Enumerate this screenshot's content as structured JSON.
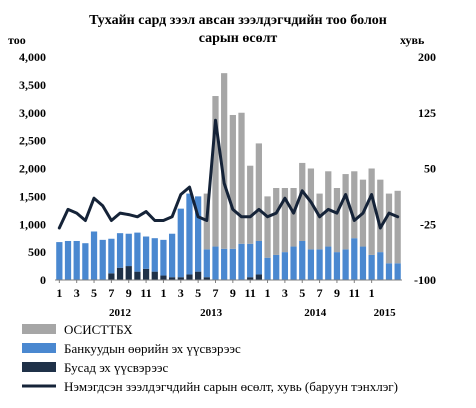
{
  "chart_data": {
    "type": "bar",
    "title_lines": [
      "Тухайн сард зээл авсан зээлдэгчдийн тоо болон",
      "сарын өсөлт"
    ],
    "ylabel_left": "тоо",
    "ylabel_right": "хувь",
    "left_ticks": [
      "0",
      "500",
      "1,000",
      "1,500",
      "2,000",
      "2,500",
      "3,000",
      "3,500",
      "4,000"
    ],
    "right_ticks": [
      "-100",
      "-25",
      "50",
      "125",
      "200"
    ],
    "ylim_left": [
      0,
      4000
    ],
    "ylim_right": [
      -100,
      200
    ],
    "x_tick_labels": [
      "1",
      "3",
      "5",
      "7",
      "9",
      "11",
      "1",
      "3",
      "5",
      "7",
      "9",
      "11",
      "1",
      "3",
      "5",
      "7",
      "9",
      "11",
      "1"
    ],
    "year_labels": [
      "2012",
      "2013",
      "2014",
      "2015"
    ],
    "months": [
      "2012-01",
      "2012-02",
      "2012-03",
      "2012-04",
      "2012-05",
      "2012-06",
      "2012-07",
      "2012-08",
      "2012-09",
      "2012-10",
      "2012-11",
      "2012-12",
      "2013-01",
      "2013-02",
      "2013-03",
      "2013-04",
      "2013-05",
      "2013-06",
      "2013-07",
      "2013-08",
      "2013-09",
      "2013-10",
      "2013-11",
      "2013-12",
      "2014-01",
      "2014-02",
      "2014-03",
      "2014-04",
      "2014-05",
      "2014-06",
      "2014-07",
      "2014-08",
      "2014-09",
      "2014-10",
      "2014-11",
      "2014-12",
      "2015-01",
      "2015-02",
      "2015-03",
      "2015-04"
    ],
    "grid": false,
    "legend_position": "bottom",
    "series": [
      {
        "name": "Бусад эх үүсвэрээс",
        "type": "bar",
        "axis": "left",
        "color": "#1f3148",
        "values": [
          0,
          0,
          0,
          0,
          0,
          0,
          120,
          220,
          250,
          150,
          200,
          150,
          80,
          50,
          50,
          100,
          150,
          50,
          0,
          0,
          0,
          0,
          50,
          100,
          0,
          0,
          0,
          0,
          0,
          0,
          0,
          0,
          0,
          0,
          0,
          0,
          0,
          0,
          0,
          0
        ]
      },
      {
        "name": "Банкуудын өөрийн эх үүсвэрээс",
        "type": "bar",
        "axis": "left",
        "color": "#4a88d0",
        "values": [
          680,
          700,
          700,
          660,
          870,
          720,
          620,
          620,
          580,
          700,
          580,
          600,
          640,
          780,
          1230,
          1450,
          1350,
          500,
          600,
          560,
          560,
          650,
          600,
          600,
          400,
          450,
          500,
          600,
          700,
          550,
          550,
          600,
          500,
          550,
          750,
          600,
          450,
          500,
          300,
          300
        ]
      },
      {
        "name": "ОСИСТТБХ",
        "type": "bar",
        "axis": "left",
        "color": "#a6a6a6",
        "values": [
          0,
          0,
          0,
          0,
          0,
          0,
          0,
          0,
          0,
          0,
          0,
          0,
          0,
          0,
          0,
          0,
          0,
          1000,
          2700,
          3150,
          2400,
          2350,
          1400,
          1750,
          1100,
          1200,
          1150,
          1050,
          1400,
          1450,
          1000,
          1350,
          1150,
          1350,
          1200,
          1200,
          1550,
          1300,
          1250,
          1300
        ]
      },
      {
        "name": "Нэмэгдсэн зээлдэгчдийн сарын өсөлт, хувь (баруун тэнхлэг)",
        "type": "line",
        "axis": "right",
        "color": "#152338",
        "values": [
          -30,
          -5,
          -10,
          -20,
          10,
          0,
          -20,
          -10,
          -12,
          -15,
          -8,
          -20,
          -20,
          -15,
          15,
          25,
          -15,
          -20,
          115,
          30,
          -5,
          -15,
          -15,
          -5,
          -15,
          -10,
          10,
          -10,
          20,
          5,
          -15,
          -5,
          -10,
          15,
          -20,
          -10,
          15,
          -30,
          -10,
          -15
        ]
      }
    ]
  }
}
